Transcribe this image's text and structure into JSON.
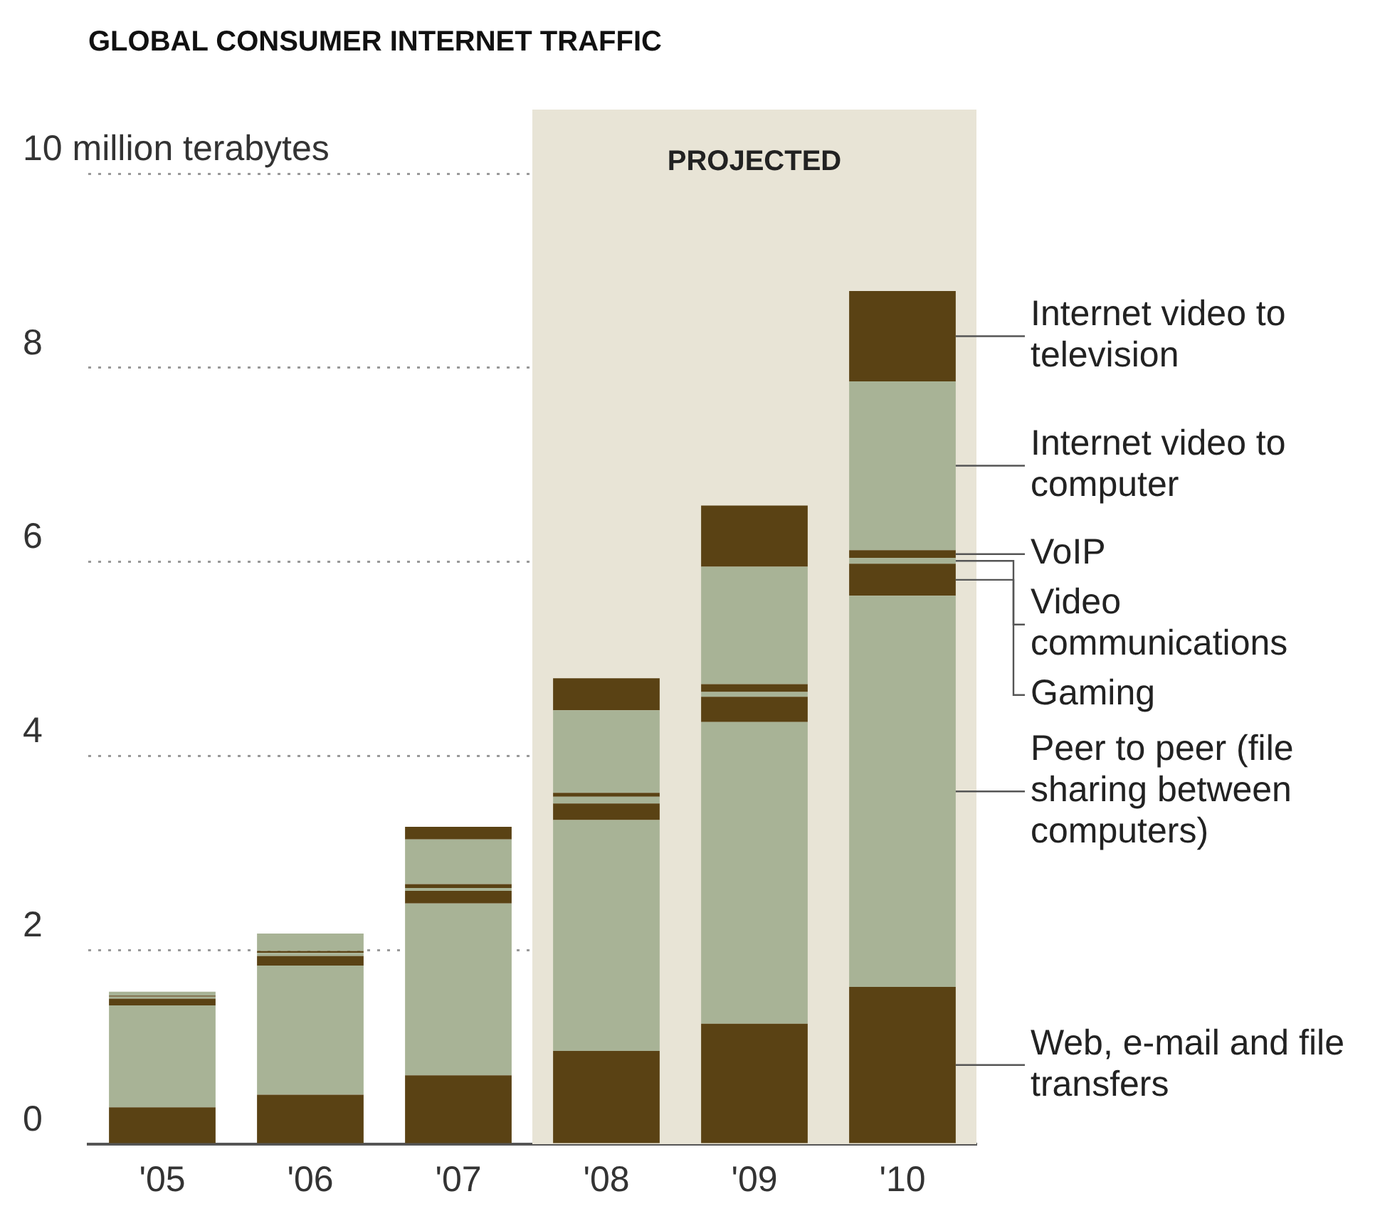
{
  "chart_data": {
    "type": "bar",
    "title": "GLOBAL CONSUMER INTERNET TRAFFIC",
    "stacked": true,
    "categories": [
      "'05",
      "'06",
      "'07",
      "'08",
      "'09",
      "'10"
    ],
    "series": [
      {
        "name": "Web, e-mail and file transfers",
        "color": "#5a4214",
        "values": [
          0.38,
          0.51,
          0.71,
          0.96,
          1.24,
          1.62
        ]
      },
      {
        "name": "Peer to peer (file sharing between computers)",
        "color": "#a8b396",
        "values": [
          1.05,
          1.33,
          1.77,
          2.38,
          3.11,
          4.03
        ]
      },
      {
        "name": "Gaming",
        "color": "#5a4214",
        "values": [
          0.07,
          0.1,
          0.13,
          0.17,
          0.26,
          0.33
        ]
      },
      {
        "name": "Video communications",
        "color": "#a8b396",
        "values": [
          0.02,
          0.03,
          0.03,
          0.07,
          0.05,
          0.06
        ]
      },
      {
        "name": "VoIP",
        "color": "#5a4214",
        "values": [
          0.01,
          0.02,
          0.04,
          0.04,
          0.08,
          0.08
        ]
      },
      {
        "name": "Internet video to computer",
        "color": "#a8b396",
        "values": [
          0.04,
          0.18,
          0.46,
          0.85,
          1.21,
          1.74
        ]
      },
      {
        "name": "Internet video to television",
        "color": "#5a4214",
        "values": [
          0,
          0,
          0.13,
          0.33,
          0.63,
          0.93
        ]
      }
    ],
    "ylim": [
      0,
      10
    ],
    "yticks": [
      0,
      2,
      4,
      6,
      8,
      {
        "value": 10,
        "label": "10 million terabytes"
      }
    ],
    "grid": "y",
    "legend": false,
    "bands": [
      {
        "axis": "x",
        "from": "'08",
        "to": "'10",
        "label": "PROJECTED",
        "color": "#e8e4d6"
      }
    ]
  }
}
